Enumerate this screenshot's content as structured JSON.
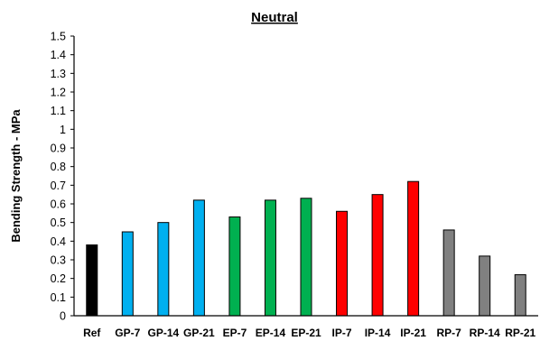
{
  "chart_data": {
    "type": "bar",
    "title": "Neutral",
    "xlabel": "",
    "ylabel": "Bending Strength - MPa",
    "ylim": [
      0,
      1.5
    ],
    "yticks": [
      "0",
      "0.1",
      "0.2",
      "0.3",
      "0.4",
      "0.5",
      "0.6",
      "0.7",
      "0.8",
      "0.9",
      "1",
      "1.1",
      "1.2",
      "1.3",
      "1.4",
      "1.5"
    ],
    "grid": false,
    "categories": [
      "Ref",
      "GP-7",
      "GP-14",
      "GP-21",
      "EP-7",
      "EP-14",
      "EP-21",
      "IP-7",
      "IP-14",
      "IP-21",
      "RP-7",
      "RP-14",
      "RP-21"
    ],
    "values": [
      0.38,
      0.45,
      0.5,
      0.62,
      0.53,
      0.62,
      0.63,
      0.56,
      0.65,
      0.72,
      0.46,
      0.32,
      0.22
    ],
    "colors": [
      "#000000",
      "#00B0F0",
      "#00B0F0",
      "#00B0F0",
      "#00B050",
      "#00B050",
      "#00B050",
      "#FF0000",
      "#FF0000",
      "#FF0000",
      "#808080",
      "#808080",
      "#808080"
    ]
  }
}
